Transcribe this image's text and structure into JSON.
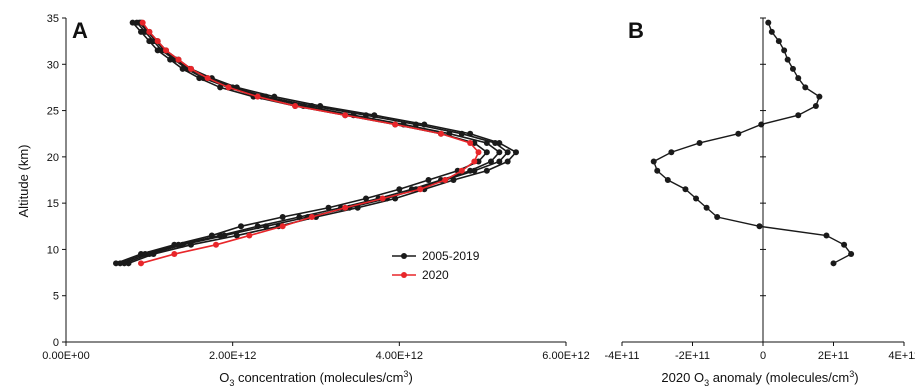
{
  "chart_data": [
    {
      "type": "line",
      "panel_label": "A",
      "xlabel": "O3 concentration (molecules/cm3)",
      "xlabel_parts": {
        "prefix": "O",
        "sub": "3",
        "middle": " concentration (molecules/cm",
        "sup": "3",
        "suffix": ")"
      },
      "ylabel": "Altitude (km)",
      "xlim": [
        0,
        6000000000000.0
      ],
      "ylim": [
        0,
        35
      ],
      "x_ticks": [
        0,
        2000000000000.0,
        4000000000000.0,
        6000000000000.0
      ],
      "x_tick_labels": [
        "0.00E+00",
        "2.00E+12",
        "4.00E+12",
        "6.00E+12"
      ],
      "y_ticks": [
        0,
        5,
        10,
        15,
        20,
        25,
        30,
        35
      ],
      "y_tick_labels": [
        "0",
        "5",
        "10",
        "15",
        "20",
        "25",
        "30",
        "35"
      ],
      "grid": false,
      "legend_position": "lower-right",
      "legend": [
        {
          "label": "2005-2019",
          "color": "#1a1a1a"
        },
        {
          "label": "2020",
          "color": "#e8262a"
        }
      ],
      "altitude": [
        8.5,
        9.5,
        10.5,
        11.5,
        12.5,
        13.5,
        14.5,
        15.5,
        16.5,
        17.5,
        18.5,
        19.5,
        20.5,
        21.5,
        22.5,
        23.5,
        24.5,
        25.5,
        26.5,
        27.5,
        28.5,
        29.5,
        30.5,
        31.5,
        32.5,
        33.5,
        34.5
      ],
      "series": [
        {
          "name": "2005-2019",
          "color": "#1a1a1a",
          "values": [
            650000000000.0,
            950000000000.0,
            1350000000000.0,
            1850000000000.0,
            2300000000000.0,
            2800000000000.0,
            3300000000000.0,
            3750000000000.0,
            4150000000000.0,
            4500000000000.0,
            4850000000000.0,
            5100000000000.0,
            5200000000000.0,
            5050000000000.0,
            4600000000000.0,
            4050000000000.0,
            3450000000000.0,
            2850000000000.0,
            2350000000000.0,
            1950000000000.0,
            1650000000000.0,
            1450000000000.0,
            1300000000000.0,
            1150000000000.0,
            1050000000000.0,
            950000000000.0,
            850000000000.0
          ]
        },
        {
          "name": "",
          "color": "#1a1a1a",
          "values": [
            750000000000.0,
            1050000000000.0,
            1500000000000.0,
            2050000000000.0,
            2550000000000.0,
            3000000000000.0,
            3500000000000.0,
            3950000000000.0,
            4300000000000.0,
            4650000000000.0,
            5050000000000.0,
            5300000000000.0,
            5400000000000.0,
            5200000000000.0,
            4850000000000.0,
            4300000000000.0,
            3700000000000.0,
            3050000000000.0,
            2500000000000.0,
            2050000000000.0,
            1750000000000.0,
            1500000000000.0,
            1350000000000.0,
            1200000000000.0,
            1100000000000.0,
            1000000000000.0,
            900000000000.0
          ]
        },
        {
          "name": "",
          "color": "#1a1a1a",
          "values": [
            600000000000.0,
            900000000000.0,
            1300000000000.0,
            1750000000000.0,
            2100000000000.0,
            2600000000000.0,
            3150000000000.0,
            3600000000000.0,
            4000000000000.0,
            4350000000000.0,
            4700000000000.0,
            4950000000000.0,
            5050000000000.0,
            4900000000000.0,
            4500000000000.0,
            3950000000000.0,
            3350000000000.0,
            2750000000000.0,
            2250000000000.0,
            1850000000000.0,
            1600000000000.0,
            1400000000000.0,
            1250000000000.0,
            1100000000000.0,
            1000000000000.0,
            900000000000.0,
            800000000000.0
          ]
        },
        {
          "name": "",
          "color": "#1a1a1a",
          "values": [
            700000000000.0,
            1000000000000.0,
            1400000000000.0,
            1900000000000.0,
            2400000000000.0,
            2900000000000.0,
            3400000000000.0,
            3850000000000.0,
            4200000000000.0,
            4550000000000.0,
            4900000000000.0,
            5200000000000.0,
            5300000000000.0,
            5150000000000.0,
            4750000000000.0,
            4200000000000.0,
            3600000000000.0,
            2950000000000.0,
            2400000000000.0,
            2000000000000.0,
            1700000000000.0,
            1480000000000.0,
            1320000000000.0,
            1180000000000.0,
            1080000000000.0,
            980000000000.0,
            880000000000.0
          ]
        },
        {
          "name": "2020",
          "color": "#e8262a",
          "values": [
            900000000000.0,
            1300000000000.0,
            1800000000000.0,
            2200000000000.0,
            2600000000000.0,
            2950000000000.0,
            3350000000000.0,
            3800000000000.0,
            4250000000000.0,
            4550000000000.0,
            4750000000000.0,
            4900000000000.0,
            4950000000000.0,
            4850000000000.0,
            4500000000000.0,
            3950000000000.0,
            3350000000000.0,
            2750000000000.0,
            2300000000000.0,
            1950000000000.0,
            1700000000000.0,
            1500000000000.0,
            1350000000000.0,
            1200000000000.0,
            1100000000000.0,
            1000000000000.0,
            920000000000.0
          ]
        }
      ]
    },
    {
      "type": "line",
      "panel_label": "B",
      "xlabel": "2020 O3 anomaly (molecules/cm3)",
      "xlabel_parts": {
        "prefix": "2020 O",
        "sub": "3",
        "middle": " anomaly (molecules/cm",
        "sup": "3",
        "suffix": ")"
      },
      "xlim": [
        -400000000000.0,
        400000000000.0
      ],
      "ylim": [
        0,
        35
      ],
      "x_ticks": [
        -400000000000.0,
        -200000000000.0,
        0,
        200000000000.0,
        400000000000.0
      ],
      "x_tick_labels": [
        "-4E+11",
        "-2E+11",
        "0",
        "2E+11",
        "4E+11"
      ],
      "grid": false,
      "series": [
        {
          "name": "",
          "color": "#1a1a1a",
          "altitude": [
            8.5,
            9.5,
            10.5,
            11.5,
            12.5,
            13.5,
            14.5,
            15.5,
            16.5,
            17.5,
            18.5,
            19.5,
            20.5,
            21.5,
            22.5,
            23.5,
            24.5,
            25.5,
            26.5,
            27.5,
            28.5,
            29.5,
            30.5,
            31.5,
            32.5,
            33.5,
            34.5
          ],
          "values": [
            200000000000.0,
            250000000000.0,
            230000000000.0,
            180000000000.0,
            -10000000000.0,
            -130000000000.0,
            -160000000000.0,
            -190000000000.0,
            -220000000000.0,
            -270000000000.0,
            -300000000000.0,
            -310000000000.0,
            -260000000000.0,
            -180000000000.0,
            -70000000000.0,
            -5000000000.0,
            100000000000.0,
            150000000000.0,
            160000000000.0,
            120000000000.0,
            100000000000.0,
            85000000000.0,
            70000000000.0,
            60000000000.0,
            45000000000.0,
            25000000000.0,
            15000000000.0
          ]
        }
      ]
    }
  ]
}
